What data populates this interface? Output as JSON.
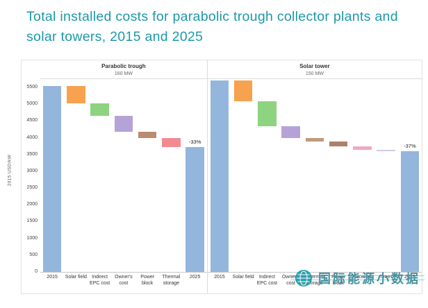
{
  "title": "Total installed costs for parabolic trough collector plants and solar towers, 2015 and 2025",
  "watermark": {
    "text": "国际能源小数据"
  },
  "chart_data": [
    {
      "type": "waterfall",
      "title": "Parabolic trough",
      "subtitle": "160 MW",
      "ylabel": "2015 USD/kW",
      "ylim": [
        0,
        5750
      ],
      "ytick_step": 500,
      "ytick_max": 5500,
      "grid": false,
      "bars": [
        {
          "label": "2015",
          "start": 0,
          "end": 5550,
          "color": "#94b6dc",
          "kind": "total"
        },
        {
          "label": "Solar field",
          "start": 5550,
          "end": 5030,
          "color": "#f7a24e"
        },
        {
          "label": "Indirect EPC cost",
          "start": 5030,
          "end": 4650,
          "color": "#8ed37f"
        },
        {
          "label": "Owner's cost",
          "start": 4650,
          "end": 4180,
          "color": "#b5a3d8"
        },
        {
          "label": "Power block",
          "start": 4180,
          "end": 4000,
          "color": "#b88c6e"
        },
        {
          "label": "Thermal storage",
          "start": 4000,
          "end": 3720,
          "color": "#f28b90"
        },
        {
          "label": "2025",
          "start": 0,
          "end": 3720,
          "color": "#94b6dc",
          "kind": "total",
          "annotation": "-33%"
        }
      ]
    },
    {
      "type": "waterfall",
      "title": "Solar tower",
      "subtitle": "150 MW",
      "ylabel": "2015 USD/kW",
      "ylim": [
        0,
        5750
      ],
      "ytick_step": 500,
      "ytick_max": 5500,
      "grid": false,
      "bars": [
        {
          "label": "2015",
          "start": 0,
          "end": 5700,
          "color": "#94b6dc",
          "kind": "total"
        },
        {
          "label": "Solar field",
          "start": 5700,
          "end": 5080,
          "color": "#f7a24e"
        },
        {
          "label": "Indirect EPC cost",
          "start": 5080,
          "end": 4350,
          "color": "#8ed37f"
        },
        {
          "label": "Owner's cost",
          "start": 4350,
          "end": 3990,
          "color": "#b5a3d8"
        },
        {
          "label": "Thermal storage",
          "start": 3990,
          "end": 3880,
          "color": "#c09a7c"
        },
        {
          "label": "Power block",
          "start": 3880,
          "end": 3750,
          "color": "#ab8169"
        },
        {
          "label": "Receiver",
          "start": 3750,
          "end": 3640,
          "color": "#f3a8bd"
        },
        {
          "label": "Tower",
          "start": 3640,
          "end": 3590,
          "color": "#d5c9e8"
        },
        {
          "label": "2025",
          "start": 0,
          "end": 3590,
          "color": "#94b6dc",
          "kind": "total",
          "annotation": "-37%"
        }
      ]
    }
  ]
}
